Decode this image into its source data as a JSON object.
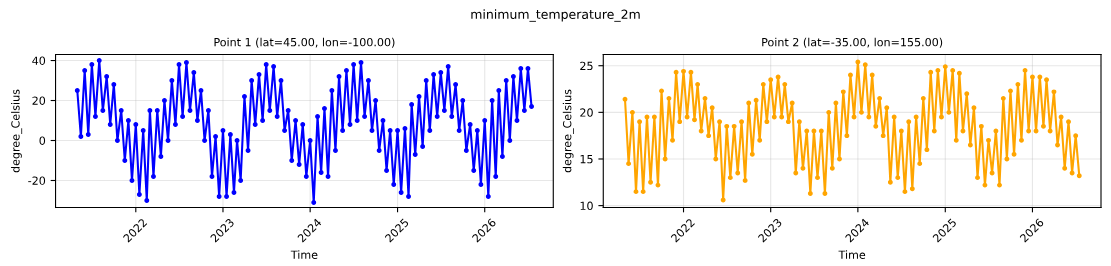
{
  "chart_data": [
    {
      "type": "line",
      "title": "Point 1 (lat=45.00, lon=-100.00)",
      "annotations": [
        "minimum_temperature_2m"
      ],
      "xlabel": "Time",
      "ylabel": "degree_Celsius",
      "grid": true,
      "marker": "circle",
      "line_style": "solid",
      "xlim": [
        "2021-01-30",
        "2026-10-15"
      ],
      "ylim": [
        -33.5,
        43
      ],
      "xticks": [
        {
          "value": "2022-01-01",
          "label": "2022"
        },
        {
          "value": "2023-01-01",
          "label": "2023"
        },
        {
          "value": "2024-01-01",
          "label": "2024"
        },
        {
          "value": "2025-01-01",
          "label": "2025"
        },
        {
          "value": "2026-01-01",
          "label": "2026"
        }
      ],
      "yticks": [
        -20,
        0,
        20,
        40
      ],
      "x": [
        "2021-05-01",
        "2021-05-16",
        "2021-06-01",
        "2021-06-16",
        "2021-07-01",
        "2021-07-16",
        "2021-08-01",
        "2021-08-16",
        "2021-09-01",
        "2021-09-16",
        "2021-10-01",
        "2021-10-16",
        "2021-11-01",
        "2021-11-16",
        "2021-12-01",
        "2021-12-16",
        "2022-01-01",
        "2022-01-16",
        "2022-02-01",
        "2022-02-16",
        "2022-03-01",
        "2022-03-16",
        "2022-04-01",
        "2022-04-16",
        "2022-05-01",
        "2022-05-16",
        "2022-06-01",
        "2022-06-16",
        "2022-07-01",
        "2022-07-16",
        "2022-08-01",
        "2022-08-16",
        "2022-09-01",
        "2022-09-16",
        "2022-10-01",
        "2022-10-16",
        "2022-11-01",
        "2022-11-16",
        "2022-12-01",
        "2022-12-16",
        "2023-01-01",
        "2023-01-16",
        "2023-02-01",
        "2023-02-16",
        "2023-03-01",
        "2023-03-16",
        "2023-04-01",
        "2023-04-16",
        "2023-05-01",
        "2023-05-16",
        "2023-06-01",
        "2023-06-16",
        "2023-07-01",
        "2023-07-16",
        "2023-08-01",
        "2023-08-16",
        "2023-09-01",
        "2023-09-16",
        "2023-10-01",
        "2023-10-16",
        "2023-11-01",
        "2023-11-16",
        "2023-12-01",
        "2023-12-16",
        "2024-01-01",
        "2024-01-16",
        "2024-02-01",
        "2024-02-16",
        "2024-03-01",
        "2024-03-16",
        "2024-04-01",
        "2024-04-16",
        "2024-05-01",
        "2024-05-16",
        "2024-06-01",
        "2024-06-16",
        "2024-07-01",
        "2024-07-16",
        "2024-08-01",
        "2024-08-16",
        "2024-09-01",
        "2024-09-16",
        "2024-10-01",
        "2024-10-16",
        "2024-11-01",
        "2024-11-16",
        "2024-12-01",
        "2024-12-16",
        "2025-01-01",
        "2025-01-16",
        "2025-02-01",
        "2025-02-16",
        "2025-03-01",
        "2025-03-16",
        "2025-04-01",
        "2025-04-16",
        "2025-05-01",
        "2025-05-16",
        "2025-06-01",
        "2025-06-16",
        "2025-07-01",
        "2025-07-16",
        "2025-08-01",
        "2025-08-16",
        "2025-09-01",
        "2025-09-16",
        "2025-10-01",
        "2025-10-16",
        "2025-11-01",
        "2025-11-16",
        "2025-12-01",
        "2025-12-16",
        "2026-01-01",
        "2026-01-16",
        "2026-02-01",
        "2026-02-16",
        "2026-03-01",
        "2026-03-16",
        "2026-04-01",
        "2026-04-16",
        "2026-05-01",
        "2026-05-16",
        "2026-06-01",
        "2026-06-16",
        "2026-07-01",
        "2026-07-16"
      ],
      "series": [
        {
          "color": "#0000ff",
          "values": [
            25,
            2,
            35,
            3,
            38,
            12,
            40,
            15,
            32,
            8,
            28,
            0,
            15,
            -10,
            10,
            -20,
            8,
            -27,
            5,
            -30,
            15,
            -18,
            15,
            -8,
            20,
            0,
            30,
            8,
            38,
            12,
            39,
            15,
            34,
            10,
            25,
            0,
            15,
            -18,
            2,
            -28,
            5,
            -28,
            3,
            -26,
            0,
            -20,
            22,
            -5,
            30,
            8,
            33,
            10,
            38,
            15,
            37,
            12,
            30,
            5,
            15,
            -10,
            10,
            -12,
            8,
            -18,
            0,
            -31,
            12,
            -16,
            16,
            -18,
            25,
            -5,
            32,
            5,
            35,
            8,
            38,
            10,
            39,
            12,
            30,
            5,
            20,
            -5,
            10,
            -15,
            5,
            -22,
            5,
            -26,
            6,
            -28,
            18,
            -7,
            22,
            -3,
            30,
            5,
            33,
            12,
            34,
            15,
            37,
            12,
            28,
            5,
            20,
            -5,
            8,
            -15,
            5,
            -22,
            10,
            -28,
            20,
            -18,
            25,
            -8,
            30,
            0,
            32,
            10,
            36,
            15,
            36,
            17
          ]
        }
      ]
    },
    {
      "type": "line",
      "title": "Point 2 (lat=-35.00, lon=155.00)",
      "xlabel": "Time",
      "ylabel": "degree_Celsius",
      "grid": true,
      "marker": "circle",
      "line_style": "solid",
      "xlim": [
        "2021-01-30",
        "2026-10-15"
      ],
      "ylim": [
        9.8,
        26.2
      ],
      "xticks": [
        {
          "value": "2022-01-01",
          "label": "2022"
        },
        {
          "value": "2023-01-01",
          "label": "2023"
        },
        {
          "value": "2024-01-01",
          "label": "2024"
        },
        {
          "value": "2025-01-01",
          "label": "2025"
        },
        {
          "value": "2026-01-01",
          "label": "2026"
        }
      ],
      "yticks": [
        10,
        15,
        20,
        25
      ],
      "x": [
        "2021-05-01",
        "2021-05-16",
        "2021-06-01",
        "2021-06-16",
        "2021-07-01",
        "2021-07-16",
        "2021-08-01",
        "2021-08-16",
        "2021-09-01",
        "2021-09-16",
        "2021-10-01",
        "2021-10-16",
        "2021-11-01",
        "2021-11-16",
        "2021-12-01",
        "2021-12-16",
        "2022-01-01",
        "2022-01-16",
        "2022-02-01",
        "2022-02-16",
        "2022-03-01",
        "2022-03-16",
        "2022-04-01",
        "2022-04-16",
        "2022-05-01",
        "2022-05-16",
        "2022-06-01",
        "2022-06-16",
        "2022-07-01",
        "2022-07-16",
        "2022-08-01",
        "2022-08-16",
        "2022-09-01",
        "2022-09-16",
        "2022-10-01",
        "2022-10-16",
        "2022-11-01",
        "2022-11-16",
        "2022-12-01",
        "2022-12-16",
        "2023-01-01",
        "2023-01-16",
        "2023-02-01",
        "2023-02-16",
        "2023-03-01",
        "2023-03-16",
        "2023-04-01",
        "2023-04-16",
        "2023-05-01",
        "2023-05-16",
        "2023-06-01",
        "2023-06-16",
        "2023-07-01",
        "2023-07-16",
        "2023-08-01",
        "2023-08-16",
        "2023-09-01",
        "2023-09-16",
        "2023-10-01",
        "2023-10-16",
        "2023-11-01",
        "2023-11-16",
        "2023-12-01",
        "2023-12-16",
        "2024-01-01",
        "2024-01-16",
        "2024-02-01",
        "2024-02-16",
        "2024-03-01",
        "2024-03-16",
        "2024-04-01",
        "2024-04-16",
        "2024-05-01",
        "2024-05-16",
        "2024-06-01",
        "2024-06-16",
        "2024-07-01",
        "2024-07-16",
        "2024-08-01",
        "2024-08-16",
        "2024-09-01",
        "2024-09-16",
        "2024-10-01",
        "2024-10-16",
        "2024-11-01",
        "2024-11-16",
        "2024-12-01",
        "2024-12-16",
        "2025-01-01",
        "2025-01-16",
        "2025-02-01",
        "2025-02-16",
        "2025-03-01",
        "2025-03-16",
        "2025-04-01",
        "2025-04-16",
        "2025-05-01",
        "2025-05-16",
        "2025-06-01",
        "2025-06-16",
        "2025-07-01",
        "2025-07-16",
        "2025-08-01",
        "2025-08-16",
        "2025-09-01",
        "2025-09-16",
        "2025-10-01",
        "2025-10-16",
        "2025-11-01",
        "2025-11-16",
        "2025-12-01",
        "2025-12-16",
        "2026-01-01",
        "2026-01-16",
        "2026-02-01",
        "2026-02-16",
        "2026-03-01",
        "2026-03-16",
        "2026-04-01",
        "2026-04-16",
        "2026-05-01",
        "2026-05-16",
        "2026-06-01",
        "2026-06-16",
        "2026-07-01",
        "2026-07-16"
      ],
      "series": [
        {
          "color": "#ffa500",
          "values": [
            21.4,
            14.5,
            20,
            11.5,
            19,
            11.5,
            19.5,
            12.5,
            19.5,
            12.2,
            22.3,
            15,
            21.5,
            17,
            24.3,
            19,
            24.4,
            19.5,
            24.3,
            19.2,
            23,
            18,
            21.5,
            17.5,
            20.5,
            15,
            19,
            10.6,
            18.5,
            13,
            18.5,
            13.5,
            19,
            12.7,
            21,
            15.5,
            21.3,
            17,
            23,
            19,
            23.5,
            19.5,
            23.8,
            19.5,
            23,
            19,
            21,
            13.5,
            19,
            14,
            18,
            11.3,
            18,
            13,
            18,
            11.3,
            20,
            14,
            21,
            15,
            22.2,
            17.5,
            24,
            19.5,
            25.4,
            20,
            25.1,
            19.5,
            24,
            18.5,
            21.5,
            17.5,
            20.5,
            12.5,
            19.5,
            13,
            18,
            11.5,
            19,
            11.8,
            19.5,
            14.5,
            21.5,
            16,
            24.3,
            18,
            24.5,
            19.5,
            24.9,
            20,
            24.5,
            17,
            24.2,
            18,
            22,
            16.5,
            20.5,
            13,
            18.5,
            12.2,
            17,
            13.5,
            18,
            12.2,
            21.5,
            15,
            22.3,
            15.5,
            23,
            17,
            24.5,
            18,
            23.8,
            18,
            23.8,
            18.5,
            23.5,
            18,
            22.2,
            16.5,
            19.5,
            14,
            19,
            13.5,
            17.5,
            13.2
          ]
        }
      ]
    }
  ]
}
